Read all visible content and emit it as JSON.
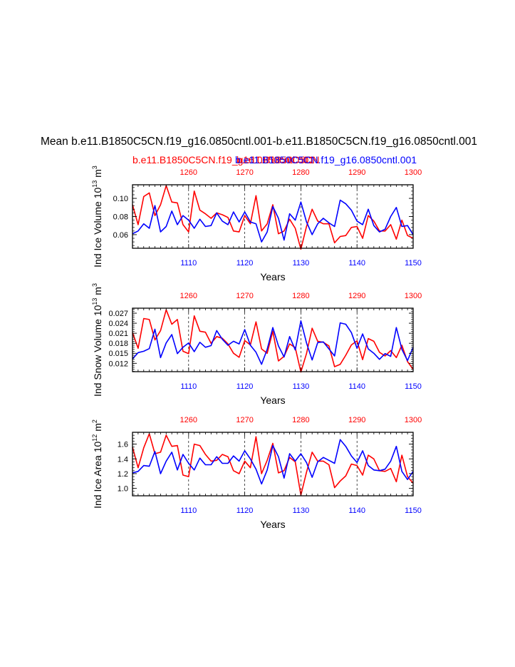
{
  "main_title": "Mean b.e11.B1850C5CN.f19_g16.0850cntl.001-b.e11.B1850C5CN.f19_g16.0850cntl.001",
  "case_red": "b.e11.B1850C5CN.f19_g16.0850cntl.001",
  "case_red_overlap": "b.e11.B1850C5CN",
  "case_blue": "b.e11.B1850C5CN.f19_g16.0850cntl.001",
  "colors": {
    "case1": "#ff0000",
    "case2": "#0000ff",
    "axis": "#000000",
    "grid": "#000000"
  },
  "chart_data": [
    {
      "type": "line",
      "ylabel": "Ind Ice Volume 10",
      "ylabel_exp": "13",
      "ylabel_unit": " m",
      "ylabel_unit_exp": "3",
      "xlabel": "Years",
      "x_bottom": {
        "ticks": [
          1110,
          1120,
          1130,
          1140,
          1150
        ],
        "range": [
          1100,
          1150
        ]
      },
      "x_top": {
        "ticks": [
          1260,
          1270,
          1280,
          1290,
          1300
        ],
        "range": [
          1250,
          1300
        ]
      },
      "ylim": [
        0.045,
        0.115
      ],
      "yticks": [
        0.06,
        0.08,
        0.1
      ],
      "ytick_labels": [
        "0.06",
        "0.08",
        "0.10"
      ],
      "series": [
        {
          "name": "b.e11.B1850C5CN.f19_g16.0850cntl.001 (years 1250-1300)",
          "color": "#ff0000",
          "values": [
            0.093,
            0.071,
            0.102,
            0.106,
            0.081,
            0.093,
            0.114,
            0.096,
            0.095,
            0.071,
            0.063,
            0.108,
            0.087,
            0.083,
            0.078,
            0.084,
            0.082,
            0.079,
            0.064,
            0.063,
            0.081,
            0.072,
            0.103,
            0.064,
            0.072,
            0.093,
            0.061,
            0.064,
            0.077,
            0.067,
            0.044,
            0.069,
            0.088,
            0.075,
            0.072,
            0.072,
            0.051,
            0.058,
            0.059,
            0.068,
            0.069,
            0.056,
            0.081,
            0.075,
            0.064,
            0.064,
            0.071,
            0.055,
            0.076,
            0.059,
            0.056
          ]
        },
        {
          "name": "b.e11.B1850C5CN.f19_g16.0850cntl.001 (years 1100-1150)",
          "color": "#0000ff",
          "values": [
            0.061,
            0.064,
            0.072,
            0.067,
            0.092,
            0.063,
            0.069,
            0.086,
            0.071,
            0.081,
            0.076,
            0.067,
            0.077,
            0.069,
            0.07,
            0.084,
            0.075,
            0.071,
            0.085,
            0.074,
            0.085,
            0.074,
            0.072,
            0.052,
            0.063,
            0.091,
            0.078,
            0.054,
            0.083,
            0.076,
            0.096,
            0.074,
            0.06,
            0.072,
            0.078,
            0.073,
            0.069,
            0.098,
            0.094,
            0.087,
            0.075,
            0.071,
            0.088,
            0.07,
            0.063,
            0.066,
            0.08,
            0.09,
            0.069,
            0.07,
            0.06
          ]
        }
      ]
    },
    {
      "type": "line",
      "ylabel": "Ind Snow Volume 10",
      "ylabel_exp": "13",
      "ylabel_unit": " m",
      "ylabel_unit_exp": "3",
      "xlabel": "Years",
      "x_bottom": {
        "ticks": [
          1110,
          1120,
          1130,
          1140,
          1150
        ],
        "range": [
          1100,
          1150
        ]
      },
      "x_top": {
        "ticks": [
          1260,
          1270,
          1280,
          1290,
          1300
        ],
        "range": [
          1250,
          1300
        ]
      },
      "ylim": [
        0.0095,
        0.0285
      ],
      "yticks": [
        0.012,
        0.015,
        0.018,
        0.021,
        0.024,
        0.027
      ],
      "ytick_labels": [
        "0.012",
        "0.015",
        "0.018",
        "0.021",
        "0.024",
        "0.027"
      ],
      "series": [
        {
          "name": "b.e11.B1850C5CN.f19_g16.0850cntl.001 (years 1250-1300)",
          "color": "#ff0000",
          "values": [
            0.0212,
            0.0165,
            0.0254,
            0.0251,
            0.019,
            0.0218,
            0.028,
            0.0237,
            0.0251,
            0.0156,
            0.0149,
            0.0262,
            0.0216,
            0.0213,
            0.018,
            0.02,
            0.0195,
            0.0178,
            0.015,
            0.0138,
            0.0188,
            0.0175,
            0.0244,
            0.0163,
            0.015,
            0.0216,
            0.0127,
            0.0141,
            0.0178,
            0.0167,
            0.0094,
            0.0149,
            0.0225,
            0.0186,
            0.0183,
            0.0172,
            0.011,
            0.0117,
            0.0144,
            0.0175,
            0.0187,
            0.0131,
            0.0194,
            0.0186,
            0.0153,
            0.0142,
            0.0158,
            0.0137,
            0.0174,
            0.0125,
            0.0102
          ]
        },
        {
          "name": "b.e11.B1850C5CN.f19_g16.0850cntl.001 (years 1100-1150)",
          "color": "#0000ff",
          "values": [
            0.0133,
            0.0152,
            0.0156,
            0.0164,
            0.0222,
            0.0137,
            0.0181,
            0.0206,
            0.0149,
            0.0168,
            0.0181,
            0.0155,
            0.0183,
            0.0168,
            0.0173,
            0.0218,
            0.0192,
            0.0174,
            0.0186,
            0.0178,
            0.0221,
            0.0174,
            0.0153,
            0.0117,
            0.0162,
            0.0227,
            0.0172,
            0.0139,
            0.02,
            0.016,
            0.0247,
            0.0181,
            0.013,
            0.0182,
            0.0184,
            0.0163,
            0.0142,
            0.0241,
            0.0237,
            0.0212,
            0.0165,
            0.0208,
            0.0163,
            0.015,
            0.0132,
            0.0149,
            0.0141,
            0.0227,
            0.0162,
            0.0128,
            0.0168
          ]
        }
      ]
    },
    {
      "type": "line",
      "ylabel": "Ind Ice Area 10",
      "ylabel_exp": "12",
      "ylabel_unit": " m",
      "ylabel_unit_exp": "2",
      "xlabel": "Years",
      "x_bottom": {
        "ticks": [
          1110,
          1120,
          1130,
          1140,
          1150
        ],
        "range": [
          1100,
          1150
        ]
      },
      "x_top": {
        "ticks": [
          1260,
          1270,
          1280,
          1290,
          1300
        ],
        "range": [
          1250,
          1300
        ]
      },
      "ylim": [
        0.9,
        1.76
      ],
      "yticks": [
        1.0,
        1.2,
        1.4,
        1.6
      ],
      "ytick_labels": [
        "1.0",
        "1.2",
        "1.4",
        "1.6"
      ],
      "series": [
        {
          "name": "b.e11.B1850C5CN.f19_g16.0850cntl.001 (years 1250-1300)",
          "color": "#ff0000",
          "values": [
            1.56,
            1.28,
            1.55,
            1.74,
            1.47,
            1.49,
            1.72,
            1.57,
            1.58,
            1.18,
            1.16,
            1.6,
            1.58,
            1.46,
            1.37,
            1.38,
            1.46,
            1.43,
            1.24,
            1.2,
            1.37,
            1.28,
            1.7,
            1.2,
            1.38,
            1.61,
            1.21,
            1.24,
            1.42,
            1.36,
            0.91,
            1.22,
            1.49,
            1.37,
            1.37,
            1.32,
            1.01,
            1.1,
            1.17,
            1.33,
            1.31,
            1.18,
            1.45,
            1.4,
            1.24,
            1.23,
            1.27,
            1.09,
            1.45,
            1.16,
            1.07
          ]
        },
        {
          "name": "b.e11.B1850C5CN.f19_g16.0850cntl.001 (years 1100-1150)",
          "color": "#0000ff",
          "values": [
            1.21,
            1.23,
            1.31,
            1.3,
            1.5,
            1.2,
            1.37,
            1.49,
            1.25,
            1.46,
            1.34,
            1.25,
            1.41,
            1.32,
            1.32,
            1.43,
            1.34,
            1.34,
            1.44,
            1.37,
            1.51,
            1.4,
            1.26,
            1.06,
            1.25,
            1.58,
            1.43,
            1.14,
            1.47,
            1.37,
            1.47,
            1.35,
            1.15,
            1.36,
            1.42,
            1.38,
            1.34,
            1.66,
            1.57,
            1.44,
            1.35,
            1.51,
            1.31,
            1.25,
            1.24,
            1.26,
            1.37,
            1.57,
            1.23,
            1.12,
            1.23
          ]
        }
      ]
    }
  ]
}
